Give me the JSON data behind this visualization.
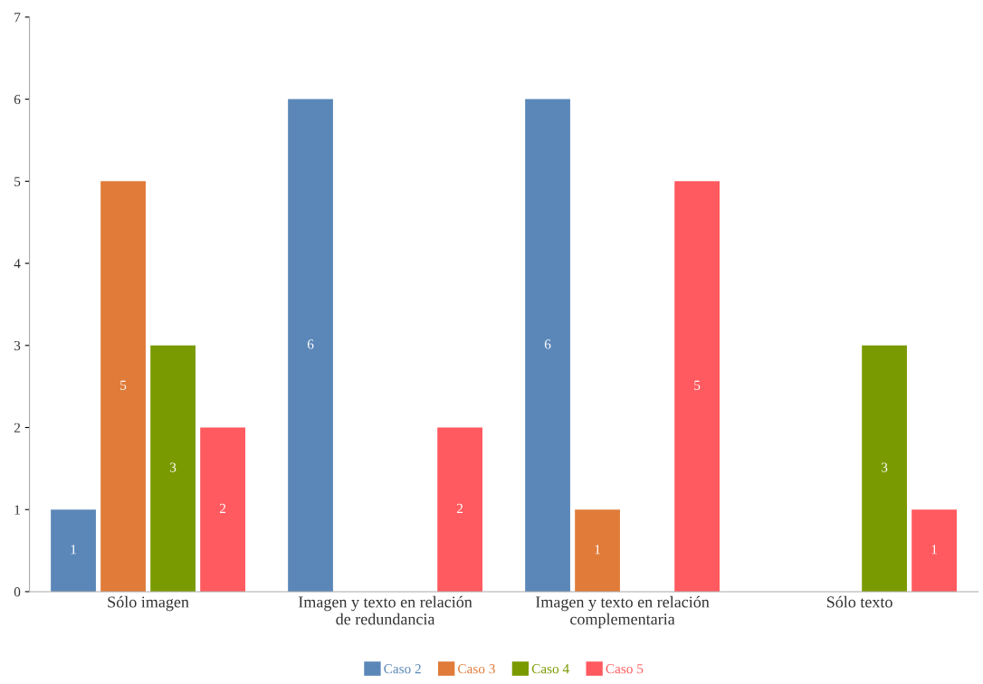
{
  "chart_data": {
    "type": "bar",
    "categories": [
      "Sólo imagen",
      "Imagen y texto en relación\nde redundancia",
      "Imagen y texto en relación\ncomplementaria",
      "Sólo texto"
    ],
    "series": [
      {
        "name": "Caso 2",
        "color": "#5b87b8",
        "values": [
          1,
          6,
          6,
          null
        ]
      },
      {
        "name": "Caso 3",
        "color": "#e07b39",
        "values": [
          5,
          null,
          1,
          null
        ]
      },
      {
        "name": "Caso 4",
        "color": "#7a9a01",
        "values": [
          3,
          null,
          null,
          3
        ]
      },
      {
        "name": "Caso 5",
        "color": "#ff5a5f",
        "values": [
          2,
          2,
          5,
          1
        ]
      }
    ],
    "ylim": [
      0,
      7
    ],
    "yticks": [
      0,
      1,
      2,
      3,
      4,
      5,
      6,
      7
    ],
    "grid": false,
    "legend": "bottom",
    "data_labels": true
  }
}
